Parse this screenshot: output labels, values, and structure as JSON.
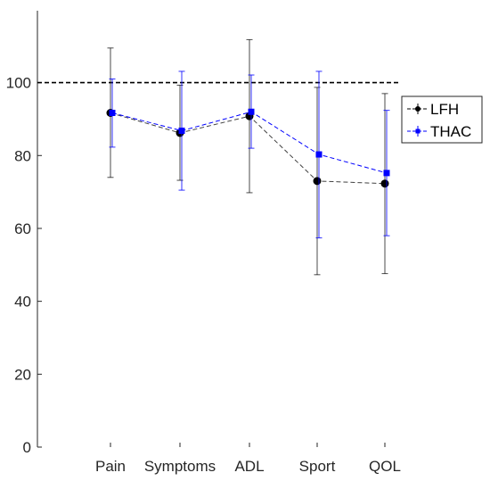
{
  "chart_data": {
    "type": "line",
    "categories": [
      "Pain",
      "Symptoms",
      "ADL",
      "Sport",
      "QOL"
    ],
    "ylim": [
      0,
      118
    ],
    "yticks": [
      0,
      20,
      40,
      60,
      80,
      100
    ],
    "reference_line": 100,
    "grid": false,
    "legend_position": "top-right",
    "series": [
      {
        "name": "LFH",
        "color": "#000000",
        "marker": "circle",
        "values": [
          91.7,
          86.2,
          90.8,
          73.0,
          72.3
        ],
        "error_low": [
          74.0,
          73.2,
          69.8,
          47.3,
          47.6
        ],
        "error_high": [
          109.5,
          99.3,
          111.8,
          98.7,
          97.0
        ]
      },
      {
        "name": "THAC",
        "color": "#0000ff",
        "marker": "square",
        "values": [
          91.7,
          86.8,
          92.0,
          80.3,
          75.2
        ],
        "error_low": [
          82.3,
          70.5,
          82.0,
          57.4,
          58.0
        ],
        "error_high": [
          101.0,
          103.1,
          102.1,
          103.1,
          92.4
        ]
      }
    ]
  }
}
